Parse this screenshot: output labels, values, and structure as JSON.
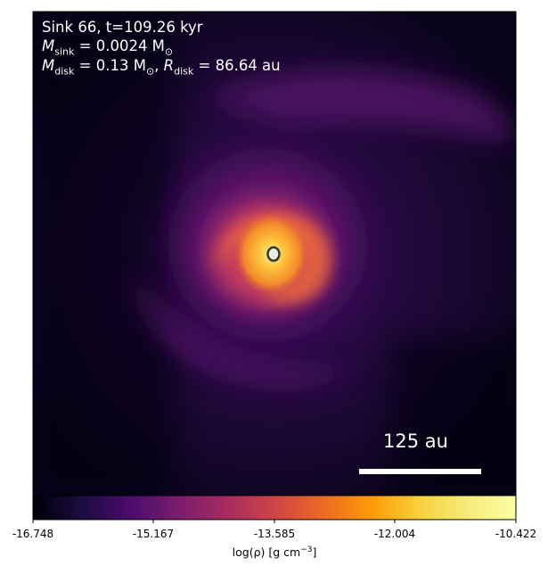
{
  "annotations": {
    "line1": "Sink 66, t=109.26 kyr",
    "m_sink_symbol": "M",
    "m_sink_sub": "sink",
    "m_sink_value": " = 0.0024 M",
    "m_sink_unit_sub": "⊙",
    "m_disk_symbol": "M",
    "m_disk_sub": "disk",
    "m_disk_value": " = 0.13 M",
    "m_disk_unit_sub": "⊙",
    "r_disk_sep": ", ",
    "r_disk_symbol": "R",
    "r_disk_sub": "disk",
    "r_disk_value": " = 86.64 au"
  },
  "scale_bar": {
    "label": "125 au"
  },
  "colorbar": {
    "ticks": [
      "-16.748",
      "-15.167",
      "-13.585",
      "-12.004",
      "-10.422"
    ],
    "label_prefix": "log(ρ) [g cm",
    "label_exp": "−3",
    "label_suffix": "]",
    "min": -16.748,
    "max": -10.422,
    "colormap": "inferno-plasma"
  },
  "colors": {
    "frame": "#000000",
    "bar": "#ffffff",
    "sink_marker": "#2e3a2e"
  }
}
